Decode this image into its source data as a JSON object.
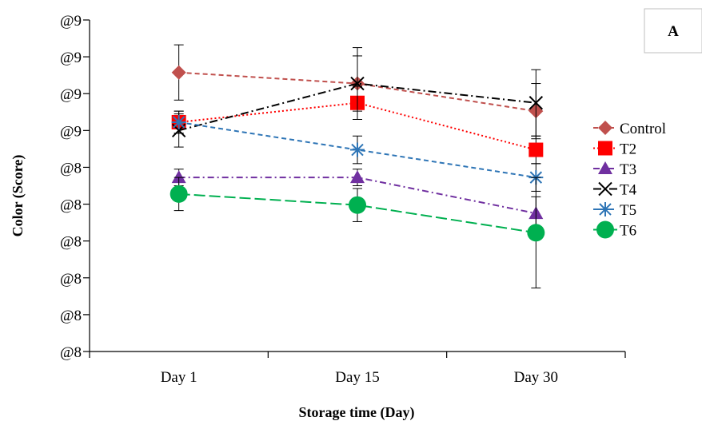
{
  "chart_data": {
    "type": "line",
    "title": "",
    "xlabel": "Storage time (Day)",
    "ylabel": "Color (Score)",
    "panel_label": "A",
    "categories": [
      "Day 1",
      "Day 15",
      "Day 30"
    ],
    "y_tick_labels": [
      "@8",
      "@8",
      "@8",
      "@8",
      "@8",
      "@8",
      "@9",
      "@9",
      "@9",
      "@9"
    ],
    "ylim": [
      7.8,
      9.0
    ],
    "grid": false,
    "legend_position": "right",
    "series": [
      {
        "name": "Control",
        "values": [
          8.81,
          8.77,
          8.67
        ],
        "errors": [
          0.1,
          0.1,
          0.1
        ],
        "color": "#c0504d",
        "dash": "6,4",
        "marker": "diamond"
      },
      {
        "name": "T2",
        "values": [
          8.63,
          8.7,
          8.53
        ],
        "errors": [
          0.04,
          0.06,
          0.05
        ],
        "color": "#ff0000",
        "dash": "2,3",
        "marker": "square"
      },
      {
        "name": "T3",
        "values": [
          8.43,
          8.43,
          8.3
        ],
        "errors": [
          0.03,
          0.03,
          0.06
        ],
        "color": "#7030a0",
        "dash": "8,4,2,4",
        "marker": "triangle"
      },
      {
        "name": "T4",
        "values": [
          8.6,
          8.77,
          8.7
        ],
        "errors": [
          0.06,
          0.13,
          0.12
        ],
        "color": "#000000",
        "dash": "10,4,2,4",
        "marker": "cross"
      },
      {
        "name": "T5",
        "values": [
          8.63,
          8.53,
          8.43
        ],
        "errors": [
          0.04,
          0.05,
          0.05
        ],
        "color": "#2e75b6",
        "dash": "6,4",
        "marker": "asterisk"
      },
      {
        "name": "T6",
        "values": [
          8.37,
          8.33,
          8.23
        ],
        "errors": [
          0.06,
          0.06,
          0.2
        ],
        "color": "#00b050",
        "dash": "14,5",
        "marker": "circle"
      }
    ]
  }
}
